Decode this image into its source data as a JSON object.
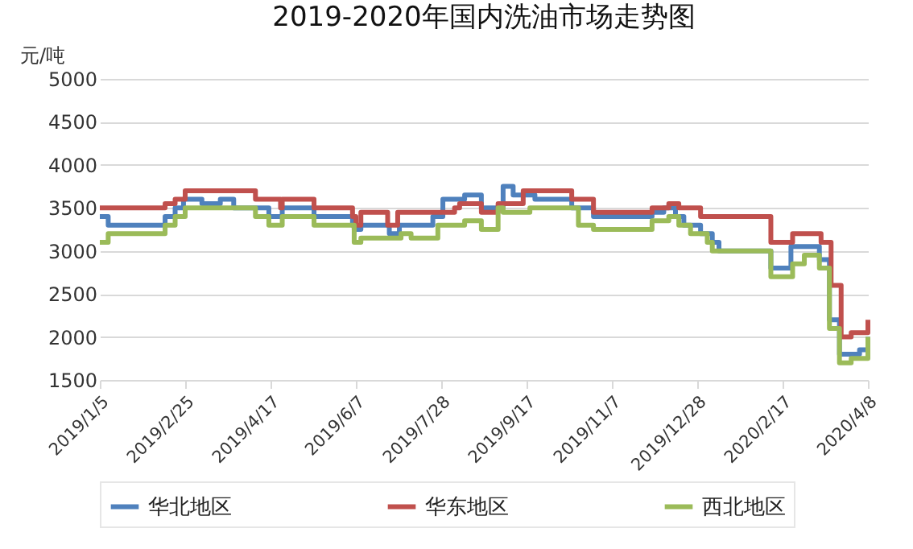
{
  "chart_data": {
    "type": "step",
    "title": "2019-2020年国内洗油市场走势图",
    "ylabel": "元/吨",
    "xlim": [
      "2019-01-05",
      "2020-04-08"
    ],
    "xticks": [
      {
        "value": "2019-01-05",
        "label": "2019/1/5"
      },
      {
        "value": "2019-02-25",
        "label": "2019/2/25"
      },
      {
        "value": "2019-04-17",
        "label": "2019/4/17"
      },
      {
        "value": "2019-06-07",
        "label": "2019/6/7"
      },
      {
        "value": "2019-07-28",
        "label": "2019/7/28"
      },
      {
        "value": "2019-09-17",
        "label": "2019/9/17"
      },
      {
        "value": "2019-11-07",
        "label": "2019/11/7"
      },
      {
        "value": "2019-12-28",
        "label": "2019/12/28"
      },
      {
        "value": "2020-02-17",
        "label": "2020/2/17"
      },
      {
        "value": "2020-04-08",
        "label": "2020/4/8"
      }
    ],
    "ylim": [
      1500,
      5000
    ],
    "yticks": [
      1500,
      2000,
      2500,
      3000,
      3500,
      4000,
      4500,
      5000
    ],
    "grid": "y",
    "legend": "bottom",
    "series": [
      {
        "name": "华北地区",
        "color": "#4f81bd",
        "x": [
          "2019-01-05",
          "2019-01-10",
          "2019-02-13",
          "2019-02-19",
          "2019-02-24",
          "2019-03-07",
          "2019-03-18",
          "2019-03-26",
          "2019-04-16",
          "2019-04-24",
          "2019-05-13",
          "2019-06-05",
          "2019-06-06",
          "2019-06-10",
          "2019-06-27",
          "2019-07-03",
          "2019-07-23",
          "2019-07-29",
          "2019-08-11",
          "2019-08-21",
          "2019-08-29",
          "2019-09-03",
          "2019-09-09",
          "2019-09-22",
          "2019-10-14",
          "2019-10-27",
          "2019-12-01",
          "2019-12-08",
          "2019-12-15",
          "2019-12-20",
          "2019-12-30",
          "2020-01-06",
          "2020-01-10",
          "2020-02-10",
          "2020-02-22",
          "2020-03-10",
          "2020-03-16",
          "2020-03-22",
          "2020-04-03",
          "2020-04-08"
        ],
        "values": [
          3400,
          3300,
          3400,
          3500,
          3600,
          3550,
          3600,
          3500,
          3400,
          3500,
          3400,
          3300,
          3250,
          3300,
          3200,
          3300,
          3400,
          3600,
          3650,
          3500,
          3500,
          3750,
          3650,
          3600,
          3500,
          3400,
          3450,
          3500,
          3400,
          3300,
          3200,
          3100,
          3000,
          2800,
          3050,
          2900,
          2200,
          1800,
          1850,
          2000
        ]
      },
      {
        "name": "华东地区",
        "color": "#c0504d",
        "x": [
          "2019-01-05",
          "2019-02-13",
          "2019-02-19",
          "2019-02-25",
          "2019-04-08",
          "2019-04-23",
          "2019-04-24",
          "2019-05-13",
          "2019-06-05",
          "2019-06-07",
          "2019-06-10",
          "2019-06-26",
          "2019-07-02",
          "2019-08-05",
          "2019-08-08",
          "2019-08-21",
          "2019-08-31",
          "2019-09-15",
          "2019-10-14",
          "2019-10-27",
          "2019-12-01",
          "2019-12-11",
          "2019-12-17",
          "2019-12-30",
          "2020-02-10",
          "2020-02-23",
          "2020-03-11",
          "2020-03-17",
          "2020-03-23",
          "2020-03-29",
          "2020-04-08"
        ],
        "values": [
          3500,
          3550,
          3600,
          3700,
          3600,
          3500,
          3600,
          3500,
          3400,
          3300,
          3450,
          3300,
          3450,
          3500,
          3550,
          3450,
          3550,
          3700,
          3600,
          3450,
          3500,
          3550,
          3500,
          3400,
          3100,
          3200,
          3100,
          2600,
          2000,
          2050,
          2200
        ]
      },
      {
        "name": "西北地区",
        "color": "#9bbb59",
        "x": [
          "2019-01-05",
          "2019-01-10",
          "2019-02-13",
          "2019-02-19",
          "2019-02-25",
          "2019-04-08",
          "2019-04-16",
          "2019-04-24",
          "2019-05-13",
          "2019-06-06",
          "2019-06-10",
          "2019-07-04",
          "2019-07-10",
          "2019-07-26",
          "2019-08-11",
          "2019-08-21",
          "2019-08-31",
          "2019-09-03",
          "2019-09-19",
          "2019-10-18",
          "2019-10-27",
          "2019-12-01",
          "2019-12-11",
          "2019-12-17",
          "2019-12-24",
          "2020-01-03",
          "2020-01-06",
          "2020-02-10",
          "2020-02-23",
          "2020-03-01",
          "2020-03-10",
          "2020-03-16",
          "2020-03-22",
          "2020-03-29",
          "2020-04-08"
        ],
        "values": [
          3100,
          3200,
          3300,
          3400,
          3500,
          3400,
          3300,
          3400,
          3300,
          3100,
          3150,
          3200,
          3150,
          3300,
          3350,
          3250,
          3500,
          3450,
          3500,
          3300,
          3250,
          3350,
          3400,
          3300,
          3200,
          3100,
          3000,
          2700,
          2850,
          2950,
          2800,
          2100,
          1700,
          1750,
          2000
        ]
      }
    ]
  }
}
